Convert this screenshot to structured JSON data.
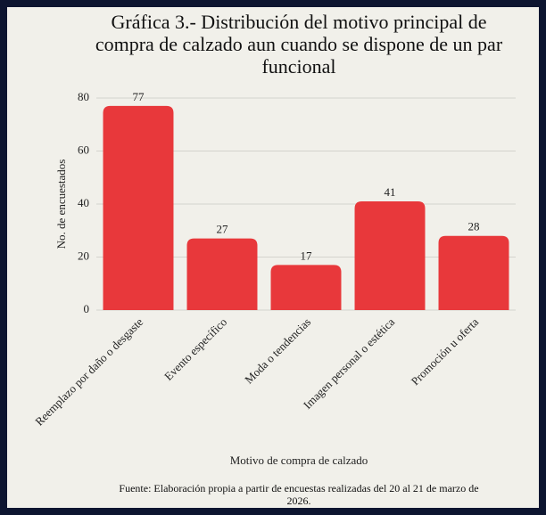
{
  "chart_data": {
    "type": "bar",
    "title": "Gráfica 3.- Distribución del motivo principal de compra de calzado aun cuando se dispone de un par funcional",
    "x_label": "Motivo de compra de calzado",
    "y_label": "No. de encuestados",
    "source": "Fuente: Elaboración propia a partir de encuestas realizadas del 20 al 21 de marzo de 2026.",
    "categories": [
      "Reemplazo por daño o desgaste",
      "Evento específico",
      "Moda o tendencias",
      "Imagen personal o estética",
      "Promoción u oferta"
    ],
    "values": [
      77,
      27,
      17,
      41,
      28
    ],
    "color": "#e8383b",
    "ylim": [
      0,
      80
    ],
    "yticks": [
      0,
      20,
      40,
      60,
      80
    ],
    "grid": true
  }
}
